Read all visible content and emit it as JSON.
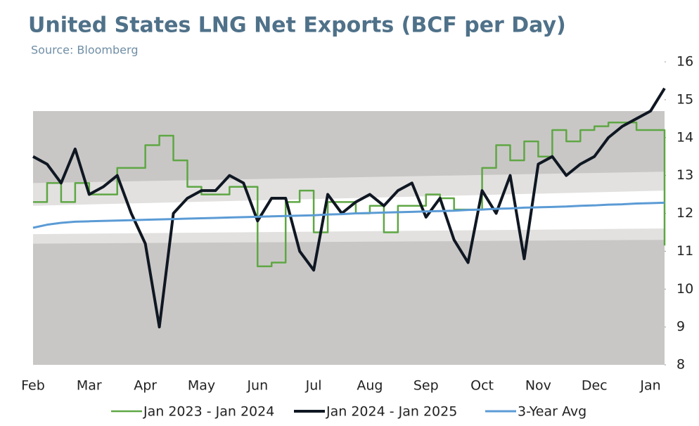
{
  "chart_data": {
    "type": "line",
    "title": "United States LNG Net Exports (BCF per Day)",
    "subtitle": "Source: Bloomberg",
    "categories": [
      "Feb",
      null,
      null,
      null,
      "Mar",
      null,
      null,
      null,
      "Apr",
      null,
      null,
      null,
      "May",
      null,
      null,
      null,
      "Jun",
      null,
      null,
      null,
      "Jul",
      null,
      null,
      null,
      "Aug",
      null,
      null,
      null,
      "Sep",
      null,
      null,
      null,
      "Oct",
      null,
      null,
      null,
      "Nov",
      null,
      null,
      null,
      "Dec",
      null,
      null,
      null,
      "Jan",
      null
    ],
    "ylim": [
      8,
      16
    ],
    "yticks": [
      8,
      9,
      10,
      11,
      12,
      13,
      14,
      15,
      16
    ],
    "bands": [
      {
        "color": "#c9c7c6",
        "lower": [
          8,
          8
        ],
        "upper": [
          14.7,
          14.7
        ]
      },
      {
        "color": "#e2e1e0",
        "lower": [
          11.2,
          11.3
        ],
        "upper": [
          12.8,
          13.1
        ]
      },
      {
        "color": "#ffffff",
        "lower": [
          11.45,
          11.6
        ],
        "upper": [
          12.2,
          12.6
        ]
      }
    ],
    "series": [
      {
        "name": "Jan 2023 - Jan 2024",
        "color": "#5fa744",
        "width": 2.5,
        "step": true,
        "values": [
          12.3,
          12.8,
          12.3,
          12.8,
          12.5,
          12.5,
          13.2,
          13.2,
          13.8,
          14.05,
          13.4,
          12.7,
          12.5,
          12.5,
          12.7,
          12.7,
          10.6,
          10.7,
          12.3,
          12.6,
          11.5,
          12.3,
          12.3,
          12.0,
          12.2,
          11.5,
          12.2,
          12.2,
          12.5,
          12.4,
          12.1,
          12.1,
          13.2,
          13.8,
          13.4,
          13.9,
          13.5,
          14.2,
          13.9,
          14.2,
          14.3,
          14.4,
          14.4,
          14.2,
          14.2,
          11.15
        ]
      },
      {
        "name": "Jan 2024 - Jan 2025",
        "color": "#0f1722",
        "width": 4,
        "step": false,
        "values": [
          13.5,
          13.3,
          12.8,
          13.7,
          12.5,
          12.7,
          13.0,
          12.0,
          11.2,
          9.0,
          12.0,
          12.4,
          12.6,
          12.6,
          13.0,
          12.8,
          11.8,
          12.4,
          12.4,
          11.0,
          10.5,
          12.5,
          12.0,
          12.3,
          12.5,
          12.2,
          12.6,
          12.8,
          11.9,
          12.4,
          11.3,
          10.7,
          12.6,
          12.0,
          13.0,
          10.8,
          13.3,
          13.5,
          13.0,
          13.3,
          13.5,
          14.0,
          14.3,
          14.5,
          14.7,
          15.3
        ]
      },
      {
        "name": "3-Year Avg",
        "color": "#5b9bd5",
        "width": 3,
        "step": false,
        "values": [
          11.62,
          11.7,
          11.75,
          11.78,
          11.79,
          11.8,
          11.81,
          11.82,
          11.83,
          11.84,
          11.85,
          11.86,
          11.87,
          11.88,
          11.89,
          11.9,
          11.91,
          11.92,
          11.93,
          11.94,
          11.95,
          11.97,
          11.98,
          12.0,
          12.01,
          12.02,
          12.03,
          12.04,
          12.05,
          12.06,
          12.07,
          12.09,
          12.1,
          12.12,
          12.13,
          12.15,
          12.16,
          12.17,
          12.18,
          12.2,
          12.21,
          12.23,
          12.24,
          12.26,
          12.27,
          12.28
        ]
      }
    ]
  }
}
